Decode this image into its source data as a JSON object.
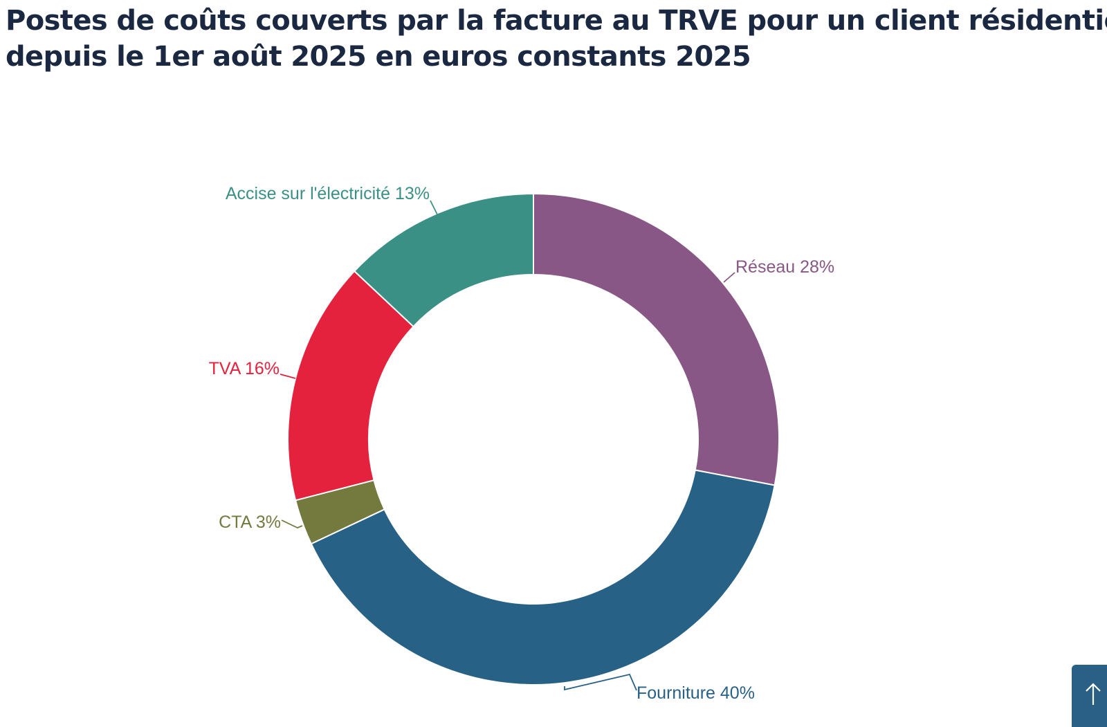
{
  "title": {
    "line1": "Postes de coûts couverts par la facture au TRVE pour un client résidentiel",
    "line2": "depuis le 1er août 2025 en euros constants 2025"
  },
  "chart_data": {
    "type": "pie",
    "donut": true,
    "categories": [
      "Réseau",
      "Fourniture",
      "CTA",
      "TVA",
      "Accise sur l'électricité"
    ],
    "values": [
      28,
      40,
      3,
      16,
      13
    ],
    "unit": "%",
    "labels": [
      "Réseau 28%",
      "Fourniture 40%",
      "CTA 3%",
      "TVA 16%",
      "Accise sur l'électricité 13%"
    ],
    "colors": [
      "#885786",
      "#286186",
      "#74793e",
      "#e5223d",
      "#3b9086"
    ],
    "start": "12 o'clock",
    "direction": "clockwise"
  },
  "back_to_top": {
    "icon": "arrow-up-icon"
  }
}
